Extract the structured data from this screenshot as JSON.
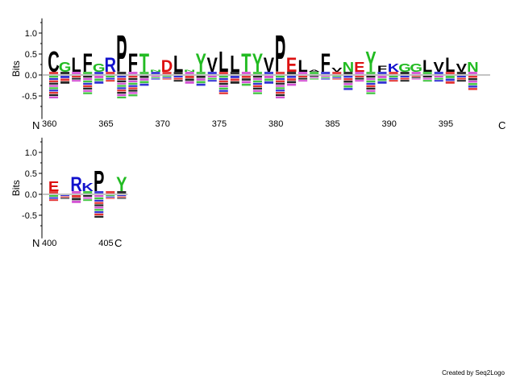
{
  "credit": "Created by Seq2Logo",
  "chart_data": [
    {
      "type": "sequence-logo",
      "ylabel": "Bits",
      "yticks": [
        "-0.5",
        "0.0",
        "0.5",
        "1.0"
      ],
      "ylim": [
        -0.9,
        1.2
      ],
      "start_label": "N",
      "end_label": "C",
      "xtick_labels": [
        "360",
        "365",
        "370",
        "375",
        "380",
        "385",
        "390",
        "395"
      ],
      "positions": [
        360,
        361,
        362,
        363,
        364,
        365,
        366,
        367,
        368,
        369,
        370,
        371,
        372,
        373,
        374,
        375,
        376,
        377,
        378,
        379,
        380,
        381,
        382,
        383,
        384,
        385,
        386,
        387,
        388,
        389,
        390,
        391,
        392,
        393,
        394,
        395,
        396,
        397,
        398
      ],
      "top_letters": [
        "C",
        "G",
        "L",
        "F",
        "G",
        "R",
        "P",
        "F",
        "T",
        "N",
        "D",
        "L",
        "N",
        "Y",
        "V",
        "L",
        "L",
        "T",
        "Y",
        "V",
        "P",
        "E",
        "L",
        "A",
        "F",
        "V",
        "N",
        "E",
        "Y",
        "F",
        "K",
        "G",
        "G",
        "L",
        "V",
        "L",
        "V",
        "N",
        ""
      ],
      "top_bits": [
        0.5,
        0.25,
        0.35,
        0.45,
        0.2,
        0.35,
        0.9,
        0.45,
        0.45,
        0.05,
        0.3,
        0.4,
        0.05,
        0.45,
        0.35,
        0.5,
        0.4,
        0.45,
        0.45,
        0.35,
        0.9,
        0.35,
        0.3,
        0.05,
        0.45,
        0.1,
        0.25,
        0.25,
        0.5,
        0.15,
        0.2,
        0.2,
        0.2,
        0.3,
        0.25,
        0.35,
        0.2,
        0.25,
        0.0
      ],
      "neg_bits": [
        -0.55,
        -0.2,
        -0.15,
        -0.45,
        -0.2,
        -0.15,
        -0.55,
        -0.5,
        -0.25,
        -0.1,
        -0.1,
        -0.15,
        -0.2,
        -0.25,
        -0.15,
        -0.45,
        -0.2,
        -0.25,
        -0.45,
        -0.2,
        -0.55,
        -0.25,
        -0.15,
        -0.1,
        -0.1,
        -0.1,
        -0.35,
        -0.15,
        -0.45,
        -0.2,
        -0.15,
        -0.15,
        -0.1,
        -0.15,
        -0.15,
        -0.2,
        -0.15,
        -0.35,
        0.0
      ]
    },
    {
      "type": "sequence-logo",
      "ylabel": "Bits",
      "yticks": [
        "-0.5",
        "0.0",
        "0.5",
        "1.0"
      ],
      "ylim": [
        -0.9,
        1.2
      ],
      "start_label": "N",
      "end_label": "C",
      "xtick_labels": [
        "400",
        "405"
      ],
      "positions": [
        400,
        401,
        402,
        403,
        404,
        405,
        406
      ],
      "top_letters": [
        "E",
        "",
        "R",
        "K",
        "P",
        "",
        "Y"
      ],
      "top_bits": [
        0.25,
        0.0,
        0.35,
        0.2,
        0.5,
        0.1,
        0.35
      ],
      "neg_bits": [
        -0.15,
        -0.1,
        -0.2,
        -0.15,
        -0.55,
        -0.1,
        -0.1
      ]
    }
  ],
  "colors": {
    "hydrophobic": "#000000",
    "polar": "#22bb22",
    "acidic": "#dd1111",
    "basic": "#1111cc",
    "neutral": "#cc33cc",
    "axis": "#000000"
  }
}
